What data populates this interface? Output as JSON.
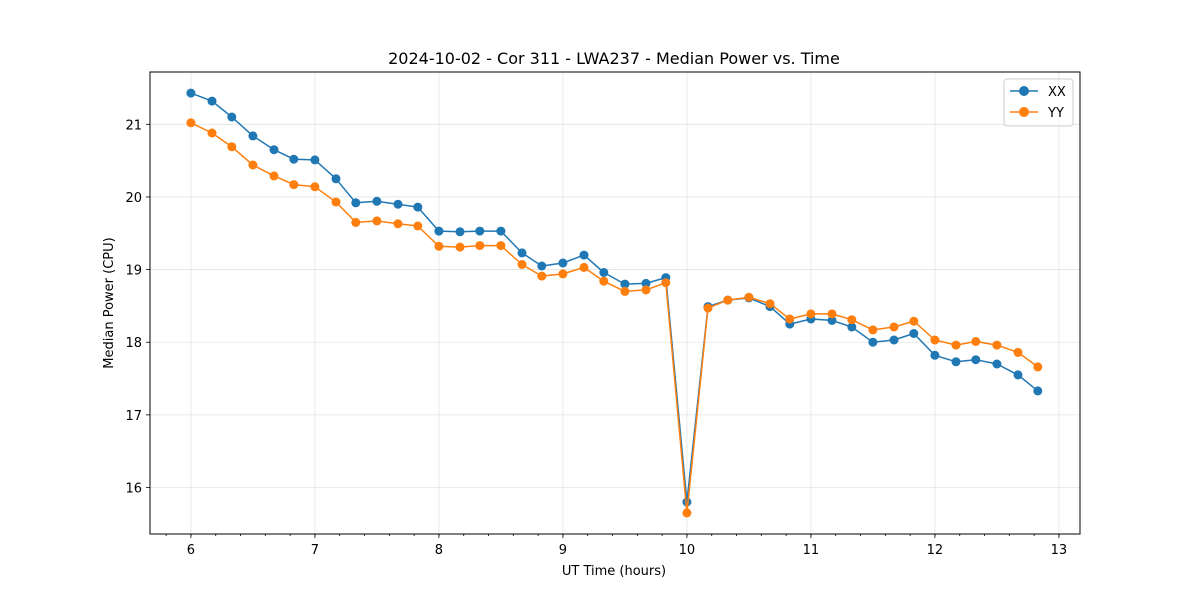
{
  "chart_data": {
    "type": "line",
    "title": "2024-10-02 - Cor 311 - LWA237 - Median Power vs. Time",
    "xlabel": "UT Time (hours)",
    "ylabel": "Median Power (CPU)",
    "xlim": [
      5.67,
      13.17
    ],
    "ylim": [
      15.36,
      21.72
    ],
    "xticks": [
      6,
      7,
      8,
      9,
      10,
      11,
      12,
      13
    ],
    "xminor_step": 0.2,
    "yticks": [
      16,
      17,
      18,
      19,
      20,
      21
    ],
    "grid": true,
    "legend_position": "top-right",
    "x": [
      6.0,
      6.17,
      6.33,
      6.5,
      6.67,
      6.83,
      7.0,
      7.17,
      7.33,
      7.5,
      7.67,
      7.83,
      8.0,
      8.17,
      8.33,
      8.5,
      8.67,
      8.83,
      9.0,
      9.17,
      9.33,
      9.5,
      9.67,
      9.83,
      10.0,
      10.17,
      10.33,
      10.5,
      10.67,
      10.83,
      11.0,
      11.17,
      11.33,
      11.5,
      11.67,
      11.83,
      12.0,
      12.17,
      12.33,
      12.5,
      12.67,
      12.83
    ],
    "series": [
      {
        "name": "XX",
        "color": "#1f77b4",
        "values": [
          21.43,
          21.32,
          21.1,
          20.84,
          20.65,
          20.52,
          20.51,
          20.25,
          19.92,
          19.94,
          19.9,
          19.86,
          19.53,
          19.52,
          19.53,
          19.53,
          19.23,
          19.05,
          19.09,
          19.2,
          18.96,
          18.8,
          18.81,
          18.89,
          15.8,
          18.49,
          18.58,
          18.61,
          18.49,
          18.25,
          18.32,
          18.3,
          18.21,
          18.0,
          18.03,
          18.12,
          17.82,
          17.73,
          17.76,
          17.7,
          17.55,
          17.33
        ]
      },
      {
        "name": "YY",
        "color": "#ff7f0e",
        "values": [
          21.02,
          20.88,
          20.69,
          20.44,
          20.29,
          20.17,
          20.14,
          19.93,
          19.65,
          19.67,
          19.63,
          19.6,
          19.32,
          19.31,
          19.33,
          19.33,
          19.07,
          18.91,
          18.94,
          19.03,
          18.84,
          18.7,
          18.72,
          18.82,
          15.65,
          18.47,
          18.58,
          18.62,
          18.53,
          18.32,
          18.39,
          18.39,
          18.31,
          18.17,
          18.21,
          18.29,
          18.03,
          17.96,
          18.01,
          17.96,
          17.86,
          17.66
        ]
      }
    ]
  }
}
